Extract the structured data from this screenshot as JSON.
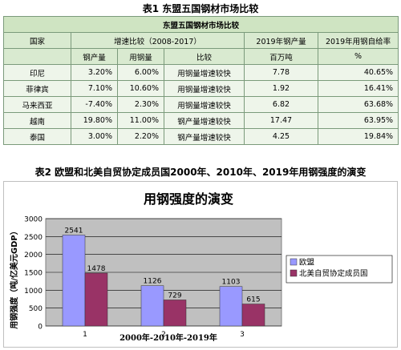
{
  "table1": {
    "caption": "表1  东盟五国钢材市场比较",
    "title": "东盟五国钢材市场比较",
    "headers": {
      "country": "国家",
      "growth": "增速比较（2008-2017）",
      "output2019": "2019年钢产量",
      "selfsuff2019": "2019年用钢自给率"
    },
    "subheaders": {
      "steel_output": "钢产量",
      "steel_use": "用钢量",
      "compare": "比较",
      "unit_output": "百万吨",
      "unit_pct": "%"
    },
    "rows": [
      {
        "country": "印尼",
        "output": "3.20%",
        "use": "6.00%",
        "compare": "用钢量增速较快",
        "prod": "7.78",
        "ratio": "40.65%"
      },
      {
        "country": "菲律宾",
        "output": "7.10%",
        "use": "10.60%",
        "compare": "用钢量增速较快",
        "prod": "1.92",
        "ratio": "16.41%"
      },
      {
        "country": "马来西亚",
        "output": "-7.40%",
        "use": "2.30%",
        "compare": "用钢量增速较快",
        "prod": "6.82",
        "ratio": "63.68%"
      },
      {
        "country": "越南",
        "output": "19.80%",
        "use": "11.00%",
        "compare": "钢产量增速较快",
        "prod": "17.47",
        "ratio": "63.95%"
      },
      {
        "country": "泰国",
        "output": "3.00%",
        "use": "2.20%",
        "compare": "钢产量增速较快",
        "prod": "4.25",
        "ratio": "19.84%"
      }
    ]
  },
  "table2": {
    "caption": "表2  欧盟和北美自贸协定成员国2000年、2010年、2019年用钢强度的演变"
  },
  "chart_data": {
    "type": "bar",
    "title": "用钢强度的演变",
    "xlabel": "2000年-2010年-2019年",
    "ylabel": "用钢强度（吨/亿美元GDP）",
    "categories": [
      "1",
      "2",
      "3"
    ],
    "series": [
      {
        "name": "欧盟",
        "values": [
          2541,
          1126,
          1103
        ],
        "color": "#9999ff"
      },
      {
        "name": "北美自贸协定成员国",
        "values": [
          1478,
          729,
          615
        ],
        "color": "#993366"
      }
    ],
    "ylim": [
      0,
      3000
    ],
    "yticks": [
      "0",
      "500",
      "1000",
      "1500",
      "2000",
      "2500",
      "3000"
    ],
    "grid": true,
    "legend": "right",
    "plot_bg": "#c0c0c0"
  }
}
